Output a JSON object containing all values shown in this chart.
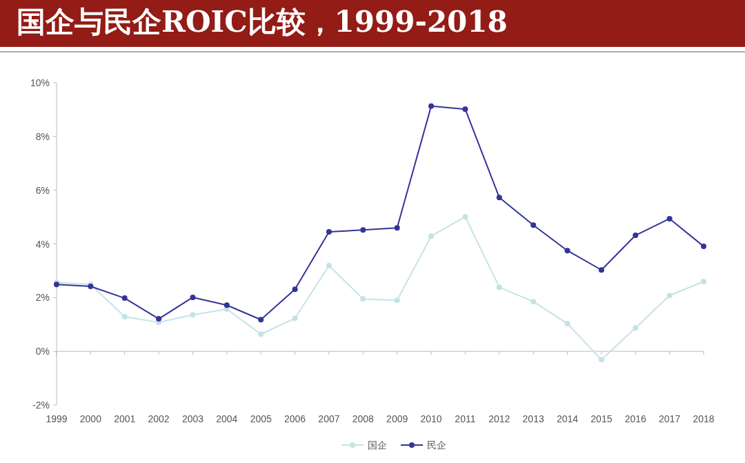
{
  "chart_data": {
    "type": "line",
    "title": "国企与民企ROIC比较，1999-2018",
    "categories": [
      "1999",
      "2000",
      "2001",
      "2002",
      "2003",
      "2004",
      "2005",
      "2006",
      "2007",
      "2008",
      "2009",
      "2010",
      "2011",
      "2012",
      "2013",
      "2014",
      "2015",
      "2016",
      "2017",
      "2018"
    ],
    "series": [
      {
        "name": "国企",
        "color": "#c5e3e6",
        "values": [
          2.57,
          2.49,
          1.29,
          1.08,
          1.36,
          1.57,
          0.64,
          1.23,
          3.19,
          1.95,
          1.9,
          4.29,
          5.01,
          2.39,
          1.85,
          1.03,
          -0.31,
          0.87,
          2.08,
          2.6
        ]
      },
      {
        "name": "民企",
        "color": "#333399",
        "values": [
          2.49,
          2.42,
          1.98,
          1.21,
          2.01,
          1.72,
          1.18,
          2.31,
          4.45,
          4.52,
          4.6,
          9.13,
          9.02,
          5.73,
          4.7,
          3.75,
          3.03,
          4.32,
          4.94,
          3.91
        ]
      }
    ],
    "ylim": [
      -2,
      10
    ],
    "yticks": [
      {
        "value": -2,
        "label": "-2%"
      },
      {
        "value": 0,
        "label": "0%"
      },
      {
        "value": 2,
        "label": "2%"
      },
      {
        "value": 4,
        "label": "4%"
      },
      {
        "value": 6,
        "label": "6%"
      },
      {
        "value": 8,
        "label": "8%"
      },
      {
        "value": 10,
        "label": "10%"
      }
    ],
    "legend": "bottom",
    "marker": "circle",
    "line_style": "solid"
  }
}
